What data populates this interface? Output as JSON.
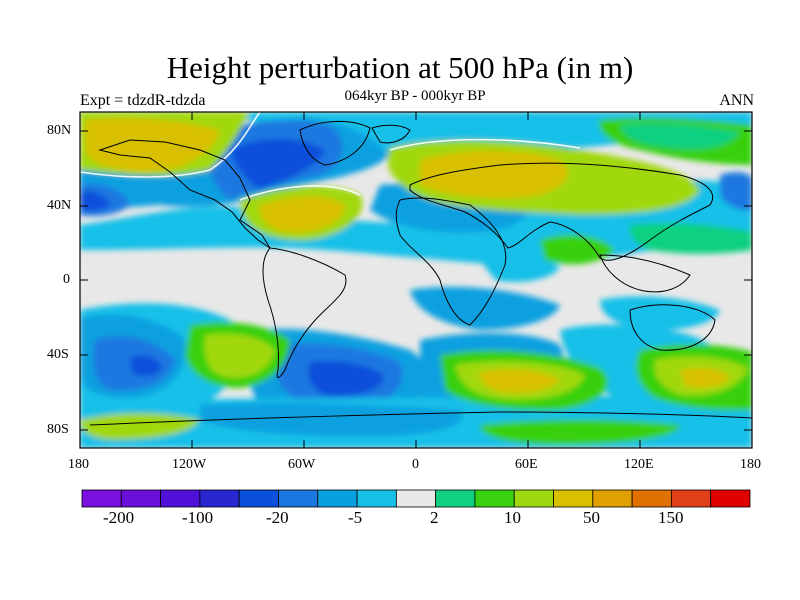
{
  "title": "Height perturbation at 500 hPa (in m)",
  "subtitle": "064kyr BP - 000kyr BP",
  "left_label": "Expt = tdzdR-tdzda",
  "right_label": "ANN",
  "lat_labels": [
    "80N",
    "40N",
    "0",
    "40S",
    "80S"
  ],
  "lon_labels": [
    "180",
    "120W",
    "60W",
    "0",
    "60E",
    "120E",
    "180"
  ],
  "colorbar": {
    "colors": [
      "#7a10e0",
      "#6a10d8",
      "#5010d8",
      "#2a26d0",
      "#0a50da",
      "#1a78e0",
      "#0aa0e0",
      "#18c0e8",
      "#e8e8e8",
      "#10d080",
      "#38d010",
      "#a0d810",
      "#d8c000",
      "#e0a000",
      "#e07000",
      "#e04018",
      "#e00000"
    ],
    "labels": [
      "-200",
      "-100",
      "-20",
      "-5",
      "2",
      "10",
      "50",
      "150"
    ]
  }
}
